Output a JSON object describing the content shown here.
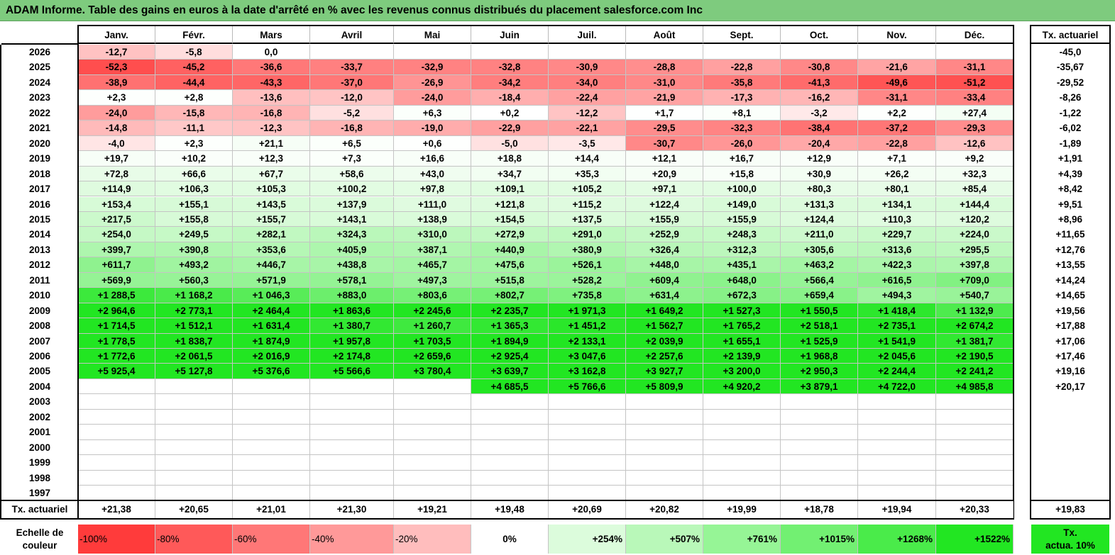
{
  "title": "ADAM Informe. Table des gains en euros à la date d'arrêté en % avec les revenus connus distribués du placement salesforce.com Inc",
  "months": [
    "Janv.",
    "Févr.",
    "Mars",
    "Avril",
    "Mai",
    "Juin",
    "Juil.",
    "Août",
    "Sept.",
    "Oct.",
    "Nov.",
    "Déc."
  ],
  "rate_header": "Tx. actuariel",
  "rows": [
    {
      "year": "2026",
      "values": [
        "-12,7",
        "-5,8",
        "0,0",
        "",
        "",
        "",
        "",
        "",
        "",
        "",
        "",
        ""
      ],
      "rate": "-45,0"
    },
    {
      "year": "2025",
      "values": [
        "-52,3",
        "-45,2",
        "-36,6",
        "-33,7",
        "-32,9",
        "-32,8",
        "-30,9",
        "-28,8",
        "-22,8",
        "-30,8",
        "-21,6",
        "-31,1"
      ],
      "rate": "-35,67"
    },
    {
      "year": "2024",
      "values": [
        "-38,9",
        "-44,4",
        "-43,3",
        "-37,0",
        "-26,9",
        "-34,2",
        "-34,0",
        "-31,0",
        "-35,8",
        "-41,3",
        "-49,6",
        "-51,2"
      ],
      "rate": "-29,52"
    },
    {
      "year": "2023",
      "values": [
        "+2,3",
        "+2,8",
        "-13,6",
        "-12,0",
        "-24,0",
        "-18,4",
        "-22,4",
        "-21,9",
        "-17,3",
        "-16,2",
        "-31,1",
        "-33,4"
      ],
      "rate": "-8,26"
    },
    {
      "year": "2022",
      "values": [
        "-24,0",
        "-15,8",
        "-16,8",
        "-5,2",
        "+6,3",
        "+0,2",
        "-12,2",
        "+1,7",
        "+8,1",
        "-3,2",
        "+2,2",
        "+27,4"
      ],
      "rate": "-1,22"
    },
    {
      "year": "2021",
      "values": [
        "-14,8",
        "-11,1",
        "-12,3",
        "-16,8",
        "-19,0",
        "-22,9",
        "-22,1",
        "-29,5",
        "-32,3",
        "-38,4",
        "-37,2",
        "-29,3"
      ],
      "rate": "-6,02"
    },
    {
      "year": "2020",
      "values": [
        "-4,0",
        "+2,3",
        "+21,1",
        "+6,5",
        "+0,6",
        "-5,0",
        "-3,5",
        "-30,7",
        "-26,0",
        "-20,4",
        "-22,8",
        "-12,6"
      ],
      "rate": "-1,89"
    },
    {
      "year": "2019",
      "values": [
        "+19,7",
        "+10,2",
        "+12,3",
        "+7,3",
        "+16,6",
        "+18,8",
        "+14,4",
        "+12,1",
        "+16,7",
        "+12,9",
        "+7,1",
        "+9,2"
      ],
      "rate": "+1,91"
    },
    {
      "year": "2018",
      "values": [
        "+72,8",
        "+66,6",
        "+67,7",
        "+58,6",
        "+43,0",
        "+34,7",
        "+35,3",
        "+20,9",
        "+15,8",
        "+30,9",
        "+26,2",
        "+32,3"
      ],
      "rate": "+4,39"
    },
    {
      "year": "2017",
      "values": [
        "+114,9",
        "+106,3",
        "+105,3",
        "+100,2",
        "+97,8",
        "+109,1",
        "+105,2",
        "+97,1",
        "+100,0",
        "+80,3",
        "+80,1",
        "+85,4"
      ],
      "rate": "+8,42"
    },
    {
      "year": "2016",
      "values": [
        "+153,4",
        "+155,1",
        "+143,5",
        "+137,9",
        "+111,0",
        "+121,8",
        "+115,2",
        "+122,4",
        "+149,0",
        "+131,3",
        "+134,1",
        "+144,4"
      ],
      "rate": "+9,51"
    },
    {
      "year": "2015",
      "values": [
        "+217,5",
        "+155,8",
        "+155,7",
        "+143,1",
        "+138,9",
        "+154,5",
        "+137,5",
        "+155,9",
        "+155,9",
        "+124,4",
        "+110,3",
        "+120,2"
      ],
      "rate": "+8,96"
    },
    {
      "year": "2014",
      "values": [
        "+254,0",
        "+249,5",
        "+282,1",
        "+324,3",
        "+310,0",
        "+272,9",
        "+291,0",
        "+252,9",
        "+248,3",
        "+211,0",
        "+229,7",
        "+224,0"
      ],
      "rate": "+11,65"
    },
    {
      "year": "2013",
      "values": [
        "+399,7",
        "+390,8",
        "+353,6",
        "+405,9",
        "+387,1",
        "+440,9",
        "+380,9",
        "+326,4",
        "+312,3",
        "+305,6",
        "+313,6",
        "+295,5"
      ],
      "rate": "+12,76"
    },
    {
      "year": "2012",
      "values": [
        "+611,7",
        "+493,2",
        "+446,7",
        "+438,8",
        "+465,7",
        "+475,6",
        "+526,1",
        "+448,0",
        "+435,1",
        "+463,2",
        "+422,3",
        "+397,8"
      ],
      "rate": "+13,55"
    },
    {
      "year": "2011",
      "values": [
        "+569,9",
        "+560,3",
        "+571,9",
        "+578,1",
        "+497,3",
        "+515,8",
        "+528,2",
        "+609,4",
        "+648,0",
        "+566,4",
        "+616,5",
        "+709,0"
      ],
      "rate": "+14,24"
    },
    {
      "year": "2010",
      "values": [
        "+1 288,5",
        "+1 168,2",
        "+1 046,3",
        "+883,0",
        "+803,6",
        "+802,7",
        "+735,8",
        "+631,4",
        "+672,3",
        "+659,4",
        "+494,3",
        "+540,7"
      ],
      "rate": "+14,65"
    },
    {
      "year": "2009",
      "values": [
        "+2 964,6",
        "+2 773,1",
        "+2 464,4",
        "+1 863,6",
        "+2 245,6",
        "+2 235,7",
        "+1 971,3",
        "+1 649,2",
        "+1 527,3",
        "+1 550,5",
        "+1 418,4",
        "+1 132,9"
      ],
      "rate": "+19,56"
    },
    {
      "year": "2008",
      "values": [
        "+1 714,5",
        "+1 512,1",
        "+1 631,4",
        "+1 380,7",
        "+1 260,7",
        "+1 365,3",
        "+1 451,2",
        "+1 562,7",
        "+1 765,2",
        "+2 518,1",
        "+2 735,1",
        "+2 674,2"
      ],
      "rate": "+17,88"
    },
    {
      "year": "2007",
      "values": [
        "+1 778,5",
        "+1 838,7",
        "+1 874,9",
        "+1 957,8",
        "+1 703,5",
        "+1 894,9",
        "+2 133,1",
        "+2 039,9",
        "+1 655,1",
        "+1 525,9",
        "+1 541,9",
        "+1 381,7"
      ],
      "rate": "+17,06"
    },
    {
      "year": "2006",
      "values": [
        "+1 772,6",
        "+2 061,5",
        "+2 016,9",
        "+2 174,8",
        "+2 659,6",
        "+2 925,4",
        "+3 047,6",
        "+2 257,6",
        "+2 139,9",
        "+1 968,8",
        "+2 045,6",
        "+2 190,5"
      ],
      "rate": "+17,46"
    },
    {
      "year": "2005",
      "values": [
        "+5 925,4",
        "+5 127,8",
        "+5 376,6",
        "+5 566,6",
        "+3 780,4",
        "+3 639,7",
        "+3 162,8",
        "+3 927,7",
        "+3 200,0",
        "+2 950,3",
        "+2 244,4",
        "+2 241,2"
      ],
      "rate": "+19,16"
    },
    {
      "year": "2004",
      "values": [
        "",
        "",
        "",
        "",
        "",
        "+4 685,5",
        "+5 766,6",
        "+5 809,9",
        "+4 920,2",
        "+3 879,1",
        "+4 722,0",
        "+4 985,8"
      ],
      "rate": "+20,17"
    },
    {
      "year": "2003",
      "values": [
        "",
        "",
        "",
        "",
        "",
        "",
        "",
        "",
        "",
        "",
        "",
        ""
      ],
      "rate": ""
    },
    {
      "year": "2002",
      "values": [
        "",
        "",
        "",
        "",
        "",
        "",
        "",
        "",
        "",
        "",
        "",
        ""
      ],
      "rate": ""
    },
    {
      "year": "2001",
      "values": [
        "",
        "",
        "",
        "",
        "",
        "",
        "",
        "",
        "",
        "",
        "",
        ""
      ],
      "rate": ""
    },
    {
      "year": "2000",
      "values": [
        "",
        "",
        "",
        "",
        "",
        "",
        "",
        "",
        "",
        "",
        "",
        ""
      ],
      "rate": ""
    },
    {
      "year": "1999",
      "values": [
        "",
        "",
        "",
        "",
        "",
        "",
        "",
        "",
        "",
        "",
        "",
        ""
      ],
      "rate": ""
    },
    {
      "year": "1998",
      "values": [
        "",
        "",
        "",
        "",
        "",
        "",
        "",
        "",
        "",
        "",
        "",
        ""
      ],
      "rate": ""
    },
    {
      "year": "1997",
      "values": [
        "",
        "",
        "",
        "",
        "",
        "",
        "",
        "",
        "",
        "",
        "",
        ""
      ],
      "rate": ""
    }
  ],
  "footer": {
    "label": "Tx. actuariel",
    "values": [
      "+21,38",
      "+20,65",
      "+21,01",
      "+21,30",
      "+19,21",
      "+19,48",
      "+20,69",
      "+20,82",
      "+19,99",
      "+18,78",
      "+19,94",
      "+20,33"
    ],
    "rate": "+19,83"
  },
  "scale": {
    "label_line1": "Echelle de",
    "label_line2": "couleur",
    "steps": [
      {
        "text": "-100%",
        "color": "#ff3b3b",
        "align": "left"
      },
      {
        "text": "-80%",
        "color": "#ff5959",
        "align": "left"
      },
      {
        "text": "-60%",
        "color": "#ff7777",
        "align": "left"
      },
      {
        "text": "-40%",
        "color": "#ff9999",
        "align": "left"
      },
      {
        "text": "-20%",
        "color": "#ffbdbd",
        "align": "left"
      },
      {
        "text": "0%",
        "color": "#ffffff",
        "align": "center"
      },
      {
        "text": "+254%",
        "color": "#dcfcdc",
        "align": "right"
      },
      {
        "text": "+507%",
        "color": "#b9f8b9",
        "align": "right"
      },
      {
        "text": "+761%",
        "color": "#96f596",
        "align": "right"
      },
      {
        "text": "+1015%",
        "color": "#72f072",
        "align": "right"
      },
      {
        "text": "+1268%",
        "color": "#4aeb4a",
        "align": "right"
      },
      {
        "text": "+1522%",
        "color": "#22e622",
        "align": "right"
      }
    ],
    "rate_line1": "Tx.",
    "rate_line2": "actua. 10%",
    "rate_color": "#22e622"
  },
  "colors": {
    "title_bg": "#7ecb7e",
    "neg_max": "#ff3b3b",
    "pos_max": "#22e622",
    "neutral": "#ffffff"
  }
}
